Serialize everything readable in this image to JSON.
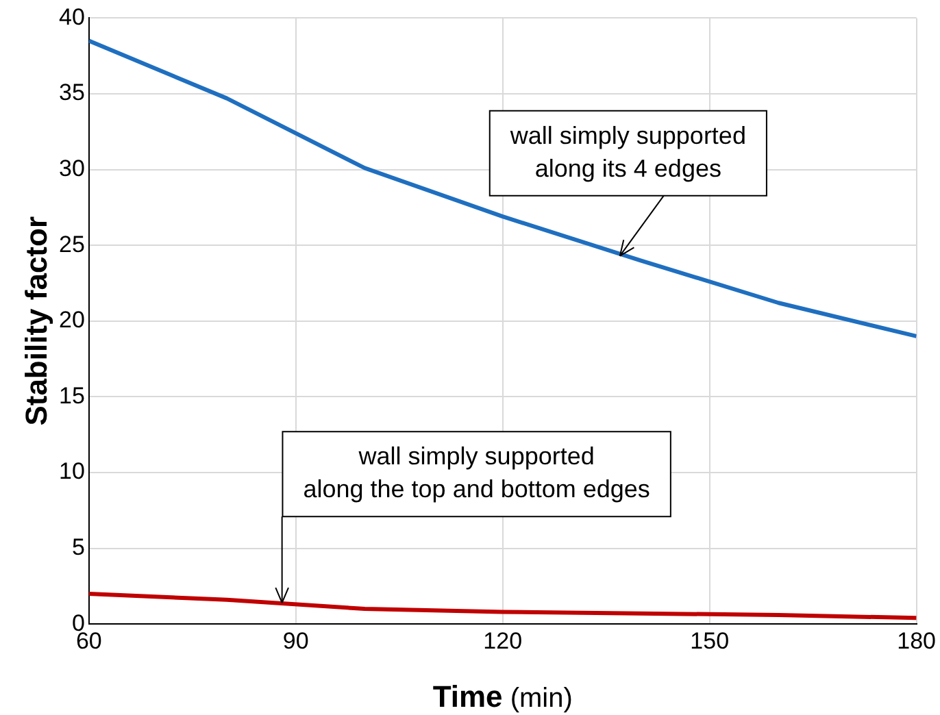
{
  "chart_data": {
    "type": "line",
    "xlabel": "Time (min)",
    "ylabel": "Stability factor",
    "x": [
      60,
      80,
      100,
      120,
      140,
      160,
      180
    ],
    "series": [
      {
        "color": "#1f6fc0",
        "values": [
          38.5,
          34.7,
          30.1,
          26.9,
          24.0,
          21.2,
          19.0
        ]
      },
      {
        "color": "#c00000",
        "values": [
          2.0,
          1.6,
          1.0,
          0.8,
          0.7,
          0.6,
          0.4
        ]
      }
    ],
    "xlim": [
      60,
      180
    ],
    "xticks": [
      60,
      90,
      120,
      150,
      180
    ],
    "ylim": [
      0,
      40
    ],
    "yticks": [
      0,
      5,
      10,
      15,
      20,
      25,
      30,
      35,
      40
    ],
    "grid": true,
    "legend": false,
    "marker": "none",
    "line_style": "solid",
    "annotations": [
      {
        "text": "wall simply supported\nalong its 4 edges",
        "x": 137,
        "y": 24.3
      },
      {
        "text": "wall simply supported\nalong the top and bottom edges",
        "x": 88,
        "y": 1.4
      }
    ]
  }
}
